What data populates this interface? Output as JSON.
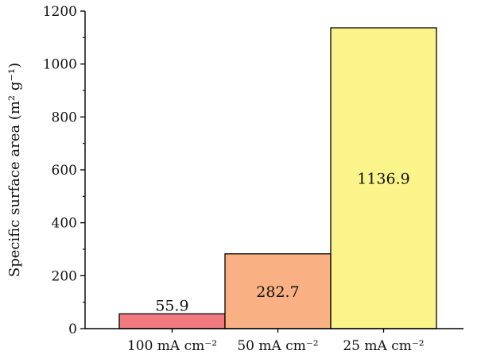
{
  "chart_data": {
    "type": "bar",
    "categories": [
      "100 mA cm⁻²",
      "50 mA cm⁻²",
      "25 mA cm⁻²"
    ],
    "values": [
      55.9,
      282.7,
      1136.9
    ],
    "data_labels": [
      "55.9",
      "282.7",
      "1136.9"
    ],
    "bar_colors": [
      "#f07a7d",
      "#f9b183",
      "#fbf48a"
    ],
    "ylabel": "Specific surface area (m² g⁻¹)",
    "ylim": [
      0,
      1200
    ],
    "yticks": [
      0,
      200,
      400,
      600,
      800,
      1000,
      1200
    ],
    "grid": false,
    "legend": "none"
  }
}
